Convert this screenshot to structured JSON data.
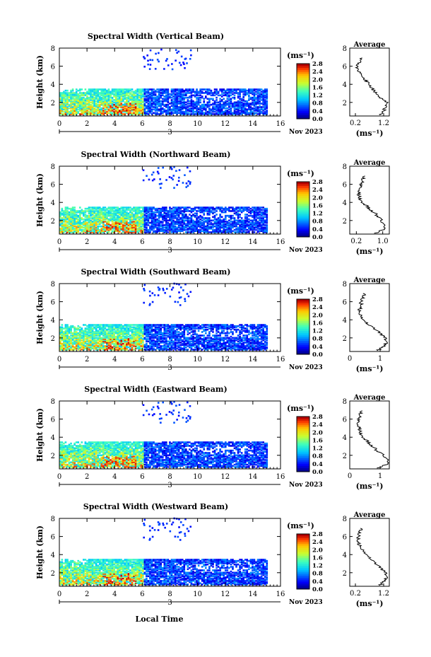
{
  "figure": {
    "xlabel": "Local Time",
    "month_label": "Nov 2023",
    "day_label": "3",
    "average_title": "Average",
    "unit_label": "(ms⁻¹)"
  },
  "chart_data": [
    {
      "type": "heatmap",
      "title": "Spectral Width (Vertical Beam)",
      "ylabel": "Height (km)",
      "xlim": [
        0,
        16
      ],
      "ylim": [
        0.5,
        8
      ],
      "xticks": [
        "0",
        "2",
        "4",
        "6",
        "8",
        "10",
        "12",
        "14",
        "16"
      ],
      "yticks": [
        "2",
        "4",
        "6",
        "8"
      ],
      "colorbar": {
        "ticks": [
          "0.0",
          "0.4",
          "0.8",
          "1.2",
          "1.6",
          "2.0",
          "2.4",
          "2.8"
        ],
        "range": [
          0,
          2.8
        ]
      },
      "avg_xticks": [
        "0.2",
        "1.2"
      ],
      "avg_xlim": [
        0,
        1.4
      ],
      "avg_profile": [
        [
          1.05,
          0.6
        ],
        [
          1.2,
          1.0
        ],
        [
          1.25,
          1.5
        ],
        [
          1.3,
          2.0
        ],
        [
          1.1,
          2.5
        ],
        [
          0.95,
          3.0
        ],
        [
          0.8,
          3.5
        ],
        [
          0.7,
          4.0
        ],
        [
          0.55,
          4.5
        ],
        [
          0.4,
          5.0
        ],
        [
          0.3,
          5.5
        ],
        [
          0.25,
          6.0
        ],
        [
          0.35,
          6.5
        ],
        [
          0.45,
          7.0
        ]
      ]
    },
    {
      "type": "heatmap",
      "title": "Spectral Width (Northward Beam)",
      "ylabel": "Height (km)",
      "xlim": [
        0,
        16
      ],
      "ylim": [
        0.5,
        8
      ],
      "xticks": [
        "0",
        "2",
        "4",
        "6",
        "8",
        "10",
        "12",
        "14",
        "16"
      ],
      "yticks": [
        "2",
        "4",
        "6",
        "8"
      ],
      "colorbar": {
        "ticks": [
          "0.0",
          "0.4",
          "0.8",
          "1.2",
          "1.6",
          "2.0",
          "2.4",
          "2.8"
        ],
        "range": [
          0,
          2.8
        ]
      },
      "avg_xticks": [
        "0.2",
        "1.0"
      ],
      "avg_xlim": [
        0,
        1.2
      ],
      "avg_profile": [
        [
          0.8,
          0.6
        ],
        [
          1.0,
          1.0
        ],
        [
          1.05,
          1.5
        ],
        [
          0.95,
          2.0
        ],
        [
          0.85,
          2.5
        ],
        [
          0.7,
          3.0
        ],
        [
          0.55,
          3.5
        ],
        [
          0.4,
          4.0
        ],
        [
          0.3,
          4.5
        ],
        [
          0.25,
          5.0
        ],
        [
          0.3,
          5.5
        ],
        [
          0.35,
          6.0
        ],
        [
          0.4,
          6.5
        ],
        [
          0.45,
          7.0
        ]
      ]
    },
    {
      "type": "heatmap",
      "title": "Spectral Width (Southward Beam)",
      "ylabel": "Height (km)",
      "xlim": [
        0,
        16
      ],
      "ylim": [
        0.5,
        8
      ],
      "xticks": [
        "0",
        "2",
        "4",
        "6",
        "8",
        "10",
        "12",
        "14",
        "16"
      ],
      "yticks": [
        "2",
        "4",
        "6",
        "8"
      ],
      "colorbar": {
        "ticks": [
          "0.0",
          "0.4",
          "0.8",
          "1.2",
          "1.6",
          "2.0",
          "2.4",
          "2.8"
        ],
        "range": [
          0,
          2.8
        ]
      },
      "avg_xticks": [
        "0",
        "1"
      ],
      "avg_xlim": [
        0,
        1.3
      ],
      "avg_profile": [
        [
          0.9,
          0.6
        ],
        [
          1.1,
          1.0
        ],
        [
          1.2,
          1.5
        ],
        [
          1.15,
          2.0
        ],
        [
          1.0,
          2.5
        ],
        [
          0.8,
          3.0
        ],
        [
          0.6,
          3.5
        ],
        [
          0.45,
          4.0
        ],
        [
          0.35,
          4.5
        ],
        [
          0.3,
          5.0
        ],
        [
          0.4,
          5.5
        ],
        [
          0.35,
          6.0
        ],
        [
          0.45,
          6.5
        ],
        [
          0.5,
          7.0
        ]
      ]
    },
    {
      "type": "heatmap",
      "title": "Spectral Width (Eastward Beam)",
      "ylabel": "Height (km)",
      "xlim": [
        0,
        16
      ],
      "ylim": [
        0.5,
        8
      ],
      "xticks": [
        "0",
        "2",
        "4",
        "6",
        "8",
        "10",
        "12",
        "14",
        "16"
      ],
      "yticks": [
        "2",
        "4",
        "6",
        "8"
      ],
      "colorbar": {
        "ticks": [
          "0.0",
          "0.4",
          "0.8",
          "1.2",
          "1.6",
          "2.0",
          "2.4",
          "2.8"
        ],
        "range": [
          0,
          2.8
        ]
      },
      "avg_xticks": [
        "0",
        "1"
      ],
      "avg_xlim": [
        0,
        1.3
      ],
      "avg_profile": [
        [
          0.95,
          0.6
        ],
        [
          1.2,
          1.0
        ],
        [
          1.25,
          1.5
        ],
        [
          1.1,
          2.0
        ],
        [
          0.9,
          2.5
        ],
        [
          0.75,
          3.0
        ],
        [
          0.6,
          3.5
        ],
        [
          0.45,
          4.0
        ],
        [
          0.35,
          4.5
        ],
        [
          0.3,
          5.0
        ],
        [
          0.25,
          5.5
        ],
        [
          0.3,
          6.0
        ],
        [
          0.35,
          6.5
        ],
        [
          0.4,
          7.0
        ]
      ]
    },
    {
      "type": "heatmap",
      "title": "Spectral Width (Westward Beam)",
      "ylabel": "Height (km)",
      "xlim": [
        0,
        16
      ],
      "ylim": [
        0.5,
        8
      ],
      "xticks": [
        "0",
        "2",
        "4",
        "6",
        "8",
        "10",
        "12",
        "14",
        "16"
      ],
      "yticks": [
        "2",
        "4",
        "6",
        "8"
      ],
      "colorbar": {
        "ticks": [
          "0.0",
          "0.4",
          "0.8",
          "1.2",
          "1.6",
          "2.0",
          "2.4",
          "2.8"
        ],
        "range": [
          0,
          2.8
        ]
      },
      "avg_xticks": [
        "0.2",
        "1.2"
      ],
      "avg_xlim": [
        0,
        1.4
      ],
      "avg_profile": [
        [
          1.05,
          0.6
        ],
        [
          1.2,
          1.0
        ],
        [
          1.3,
          1.5
        ],
        [
          1.25,
          2.0
        ],
        [
          1.1,
          2.5
        ],
        [
          0.9,
          3.0
        ],
        [
          0.75,
          3.5
        ],
        [
          0.6,
          4.0
        ],
        [
          0.45,
          4.5
        ],
        [
          0.35,
          5.0
        ],
        [
          0.3,
          5.5
        ],
        [
          0.3,
          6.0
        ],
        [
          0.35,
          6.5
        ],
        [
          0.45,
          7.0
        ]
      ]
    }
  ]
}
